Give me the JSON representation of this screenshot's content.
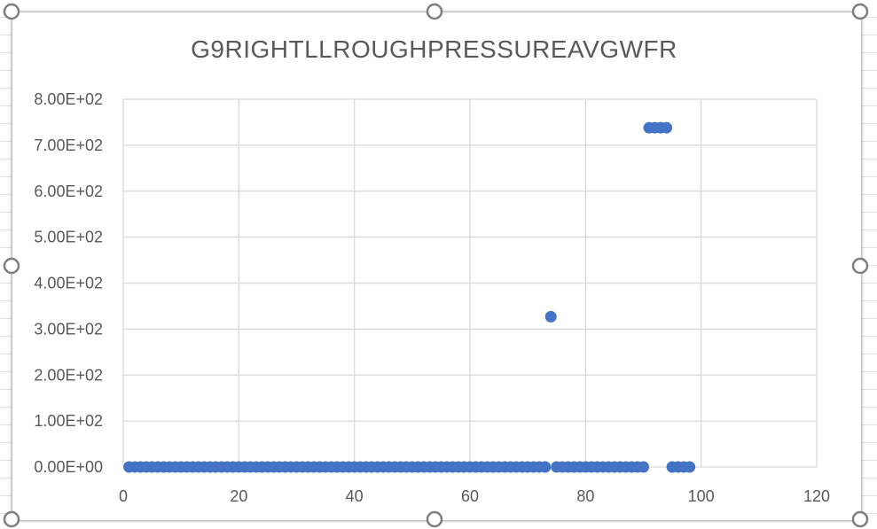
{
  "chart_data": {
    "type": "scatter",
    "title": "G9RIGHTLLROUGHPRESSUREAVGWFR",
    "xlabel": "",
    "ylabel": "",
    "xlim": [
      0,
      120
    ],
    "ylim": [
      0,
      800
    ],
    "x_ticks": [
      0,
      20,
      40,
      60,
      80,
      100,
      120
    ],
    "y_ticks": [
      0,
      100,
      200,
      300,
      400,
      500,
      600,
      700,
      800
    ],
    "y_tick_labels": [
      "0.00E+00",
      "1.00E+02",
      "2.00E+02",
      "3.00E+02",
      "4.00E+02",
      "5.00E+02",
      "6.00E+02",
      "7.00E+02",
      "8.00E+02"
    ],
    "x_tick_labels": [
      "0",
      "20",
      "40",
      "60",
      "80",
      "100",
      "120"
    ],
    "grid": true,
    "marker_color": "#4472c4",
    "series": [
      {
        "points": [
          [
            1,
            0
          ],
          [
            2,
            0
          ],
          [
            3,
            0
          ],
          [
            4,
            0
          ],
          [
            5,
            0
          ],
          [
            6,
            0
          ],
          [
            7,
            0
          ],
          [
            8,
            0
          ],
          [
            9,
            0
          ],
          [
            10,
            0
          ],
          [
            11,
            0
          ],
          [
            12,
            0
          ],
          [
            13,
            0
          ],
          [
            14,
            0
          ],
          [
            15,
            0
          ],
          [
            16,
            0
          ],
          [
            17,
            0
          ],
          [
            18,
            0
          ],
          [
            19,
            0
          ],
          [
            20,
            0
          ],
          [
            21,
            0
          ],
          [
            22,
            0
          ],
          [
            23,
            0
          ],
          [
            24,
            0
          ],
          [
            25,
            0
          ],
          [
            26,
            0
          ],
          [
            27,
            0
          ],
          [
            28,
            0
          ],
          [
            29,
            0
          ],
          [
            30,
            0
          ],
          [
            31,
            0
          ],
          [
            32,
            0
          ],
          [
            33,
            0
          ],
          [
            34,
            0
          ],
          [
            35,
            0
          ],
          [
            36,
            0
          ],
          [
            37,
            0
          ],
          [
            38,
            0
          ],
          [
            39,
            0
          ],
          [
            40,
            0
          ],
          [
            41,
            0
          ],
          [
            42,
            0
          ],
          [
            43,
            0
          ],
          [
            44,
            0
          ],
          [
            45,
            0
          ],
          [
            46,
            0
          ],
          [
            47,
            0
          ],
          [
            48,
            0
          ],
          [
            49,
            0
          ],
          [
            50,
            0
          ],
          [
            51,
            0
          ],
          [
            52,
            0
          ],
          [
            53,
            0
          ],
          [
            54,
            0
          ],
          [
            55,
            0
          ],
          [
            56,
            0
          ],
          [
            57,
            0
          ],
          [
            58,
            0
          ],
          [
            59,
            0
          ],
          [
            60,
            0
          ],
          [
            61,
            0
          ],
          [
            62,
            0
          ],
          [
            63,
            0
          ],
          [
            64,
            0
          ],
          [
            65,
            0
          ],
          [
            66,
            0
          ],
          [
            67,
            0
          ],
          [
            68,
            0
          ],
          [
            69,
            0
          ],
          [
            70,
            0
          ],
          [
            71,
            0
          ],
          [
            72,
            0
          ],
          [
            73,
            0
          ],
          [
            74,
            327
          ],
          [
            75,
            0
          ],
          [
            76,
            0
          ],
          [
            77,
            0
          ],
          [
            78,
            0
          ],
          [
            79,
            0
          ],
          [
            80,
            0
          ],
          [
            81,
            0
          ],
          [
            82,
            0
          ],
          [
            83,
            0
          ],
          [
            84,
            0
          ],
          [
            85,
            0
          ],
          [
            86,
            0
          ],
          [
            87,
            0
          ],
          [
            88,
            0
          ],
          [
            89,
            0
          ],
          [
            90,
            0
          ],
          [
            91,
            738
          ],
          [
            92,
            738
          ],
          [
            93,
            738
          ],
          [
            94,
            738
          ],
          [
            95,
            0
          ],
          [
            96,
            0
          ],
          [
            97,
            0
          ],
          [
            98,
            0
          ]
        ]
      }
    ]
  }
}
